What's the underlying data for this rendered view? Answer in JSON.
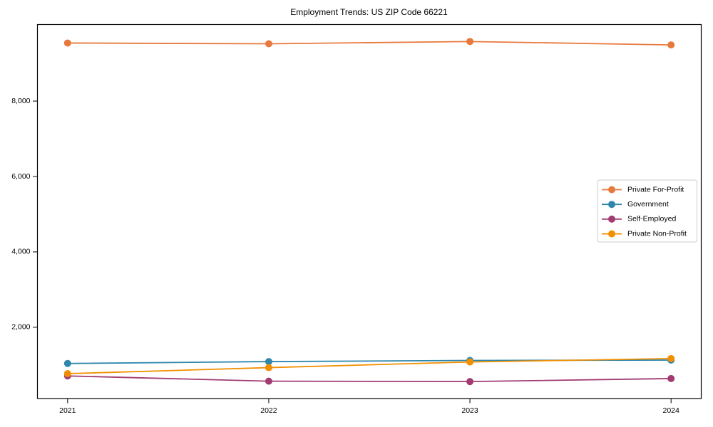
{
  "figure": {
    "background": "#ffffff"
  },
  "chart_data": {
    "type": "line",
    "title": "Employment Trends: US ZIP Code 66221",
    "x": [
      2021,
      2022,
      2023,
      2024
    ],
    "xtick_labels": [
      "2021",
      "2022",
      "2023",
      "2024"
    ],
    "xlim": [
      2020.85,
      2024.15
    ],
    "ylim": [
      110,
      10030
    ],
    "yticks": [
      2000,
      4000,
      6000,
      8000
    ],
    "ytick_labels": [
      "2,000",
      "4,000",
      "6,000",
      "8,000"
    ],
    "grid": false,
    "marker": "circle",
    "legend_position": "center right",
    "series": [
      {
        "name": "Private For-Profit",
        "color": "#E8793D",
        "values": [
          9540,
          9520,
          9580,
          9490
        ]
      },
      {
        "name": "Government",
        "color": "#2E86AB",
        "values": [
          1040,
          1090,
          1120,
          1130
        ]
      },
      {
        "name": "Self-Employed",
        "color": "#A23B72",
        "values": [
          710,
          570,
          560,
          640
        ]
      },
      {
        "name": "Private Non-Profit",
        "color": "#F18F01",
        "values": [
          770,
          930,
          1080,
          1170
        ]
      }
    ]
  }
}
